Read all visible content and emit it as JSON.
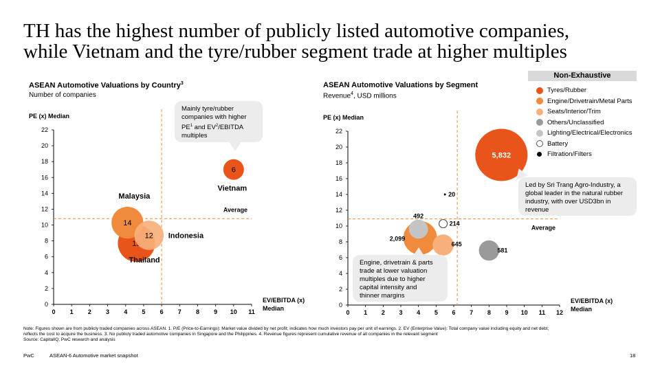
{
  "title": {
    "line1": "TH has the highest number of publicly listed automotive companies,",
    "line2": "while Vietnam and the tyre/rubber segment trade at higher multiples"
  },
  "left": {
    "title": "ASEAN Automotive Valuations by Country",
    "title_sup": "3",
    "subtitle": "Number of companies",
    "callout": {
      "line1": "Mainly tyre/rubber",
      "line2": "companies with higher",
      "line3_a": "PE",
      "line3_sup1": "1",
      "line3_b": " and EV",
      "line3_sup2": "2",
      "line3_c": "/EBITDA",
      "line4": "multiples"
    }
  },
  "right": {
    "title": "ASEAN Automotive Valuations by Segment",
    "subtitle_a": "Revenue",
    "subtitle_sup": "4",
    "subtitle_b": ", USD millions",
    "callout_top": {
      "line1": "Led by Sri Trang Agro-Industry, a",
      "line2": "global leader in the natural rubber",
      "line3": "industry, with over USD3bn in",
      "line4": "revenue"
    },
    "callout_bottom": {
      "line1": "Engine, drivetrain & parts",
      "line2": "trade at lower valuation",
      "line3": "multiples due to higher",
      "line4": "capital intensity and",
      "line5": "thinner margins"
    }
  },
  "legend": {
    "header": "Non-Exhaustive",
    "items": [
      {
        "label": "Tyres/Rubber",
        "color": "#e8541a"
      },
      {
        "label": "Engine/Drivetrain/Metal Parts",
        "color": "#f08a3c"
      },
      {
        "label": "Seats/Interior/Trim",
        "color": "#f7b07a"
      },
      {
        "label": "Others/Unclassified",
        "color": "#9a9a9a"
      },
      {
        "label": "Lighting/Electrical/Electronics",
        "color": "#c4c4c4"
      },
      {
        "label": "Battery",
        "color": "#ffffff"
      },
      {
        "label": "Filtration/Filters",
        "color": "#000000"
      }
    ]
  },
  "chart_data": [
    {
      "type": "scatter",
      "title": "ASEAN Automotive Valuations by Country",
      "subtitle": "Number of companies",
      "ylabel": "PE (x) Median",
      "xlabel_line1": "EV/EBITDA (x)",
      "xlabel_line2": "Median",
      "xlim": [
        0,
        11
      ],
      "ylim": [
        0,
        22
      ],
      "xticks": [
        0,
        1,
        2,
        3,
        4,
        5,
        6,
        7,
        8,
        9,
        10,
        11
      ],
      "yticks": [
        0,
        2,
        4,
        6,
        8,
        10,
        12,
        14,
        16,
        18,
        20,
        22
      ],
      "average": {
        "x": 6.0,
        "y": 10.8,
        "label": "Average"
      },
      "points": [
        {
          "name": "Thailand",
          "x": 4.6,
          "y": 7.7,
          "value": "19",
          "count": 19,
          "color": "#e8541a"
        },
        {
          "name": "Malaysia",
          "x": 4.1,
          "y": 10.3,
          "value": "14",
          "count": 14,
          "color": "#f08a3c"
        },
        {
          "name": "Indonesia",
          "x": 5.3,
          "y": 8.7,
          "value": "12",
          "count": 12,
          "color": "#f7b07a"
        },
        {
          "name": "Vietnam",
          "x": 10.0,
          "y": 17.0,
          "value": "6",
          "count": 6,
          "color": "#e8541a"
        }
      ]
    },
    {
      "type": "scatter",
      "title": "ASEAN Automotive Valuations by Segment",
      "subtitle": "Revenue, USD millions",
      "ylabel": "PE (x) Median",
      "xlabel_line1": "EV/EBITDA (x)",
      "xlabel_line2": "Median",
      "xlim": [
        0,
        12
      ],
      "ylim": [
        0,
        22
      ],
      "xticks": [
        0,
        1,
        2,
        3,
        4,
        5,
        6,
        7,
        8,
        9,
        10,
        11,
        12
      ],
      "yticks": [
        0,
        2,
        4,
        6,
        8,
        10,
        12,
        14,
        16,
        18,
        20,
        22
      ],
      "average": {
        "x": 6.2,
        "y": 10.9,
        "label": "Average"
      },
      "points": [
        {
          "name": "Tyres/Rubber",
          "x": 8.7,
          "y": 19.0,
          "value": "5,832",
          "revenue": 5832,
          "color": "#e8541a"
        },
        {
          "name": "Engine/Drivetrain/Metal Parts",
          "x": 4.1,
          "y": 8.5,
          "value": "2,099",
          "revenue": 2099,
          "color": "#f08a3c"
        },
        {
          "name": "Seats/Interior/Trim",
          "x": 5.4,
          "y": 7.6,
          "value": "645",
          "revenue": 645,
          "color": "#f7b07a"
        },
        {
          "name": "Others/Unclassified",
          "x": 8.0,
          "y": 6.9,
          "value": "581",
          "revenue": 581,
          "color": "#9a9a9a"
        },
        {
          "name": "Lighting/Electrical/Electronics",
          "x": 4.0,
          "y": 9.6,
          "value": "492",
          "revenue": 492,
          "color": "#c4c4c4"
        },
        {
          "name": "Battery",
          "x": 5.4,
          "y": 10.3,
          "value": "214",
          "revenue": 214,
          "color": "#ffffff"
        },
        {
          "name": "Filtration/Filters",
          "x": 5.5,
          "y": 14.0,
          "value": "20",
          "revenue": 20,
          "color": "#000000"
        }
      ]
    }
  ],
  "note": {
    "line1": "Note: Figures shown are from publicly traded companies across ASEAN. 1. P/E (Price-to-Earnings): Market value divided by net profit; indicates how much investors pay per unit of earnings. 2. EV (Enterprise Value): Total company value including equity and net debt;",
    "line2": "reflects the cost to acquire the business. 3. No publicly traded automotive companies in Singapore and the Philippines. 4. Revenue figures represent cumulative revenue of all companies in the relevant segment",
    "line3": "Source: CapitalIQ, PwC research and analysis"
  },
  "footer": {
    "brand": "PwC",
    "doc": "ASEAN-6 Automotive market snapshot",
    "page": "18"
  }
}
